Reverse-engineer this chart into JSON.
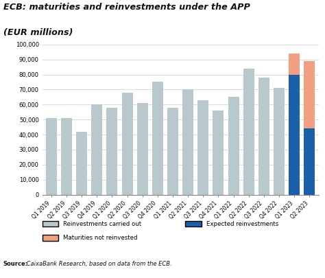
{
  "title_line1": "ECB: maturities and reinvestments under the APP",
  "title_line2": "(EUR millions)",
  "categories": [
    "Q1 2019",
    "Q2 2019",
    "Q3 2019",
    "Q4 2019",
    "Q1 2020",
    "Q2 2020",
    "Q3 2020",
    "Q4 2020",
    "Q1 2021",
    "Q2 2021",
    "Q3 2021",
    "Q4 2021",
    "Q1 2022",
    "Q2 2022",
    "Q3 2022",
    "Q4 2022",
    "Q1 2023",
    "Q2 2023"
  ],
  "reinvestments_carried_out": [
    51000,
    51000,
    42000,
    60000,
    58000,
    68000,
    61000,
    75000,
    58000,
    70000,
    63000,
    56000,
    65000,
    84000,
    78000,
    71000,
    0,
    0
  ],
  "expected_reinvestments": [
    0,
    0,
    0,
    0,
    0,
    0,
    0,
    0,
    0,
    0,
    0,
    0,
    0,
    0,
    0,
    0,
    80000,
    44000
  ],
  "maturities_not_reinvested": [
    0,
    0,
    0,
    0,
    0,
    0,
    0,
    0,
    0,
    0,
    0,
    0,
    0,
    0,
    0,
    0,
    14000,
    45000
  ],
  "color_reinvestments": "#b8c8cc",
  "color_expected": "#1a5fa8",
  "color_maturities": "#f0a080",
  "ylim": [
    0,
    100000
  ],
  "yticks": [
    0,
    10000,
    20000,
    30000,
    40000,
    50000,
    60000,
    70000,
    80000,
    90000,
    100000
  ],
  "ytick_labels": [
    "0",
    "10,000",
    "20,000",
    "30,000",
    "40,000",
    "50,000",
    "60,000",
    "70,000",
    "80,000",
    "90,000",
    "100,000"
  ],
  "source_bold": "Source:",
  "source_italic": " CaixaBank Research, based on data from the ECB.",
  "legend_entries": [
    "Reinvestments carried out",
    "Expected reinvestments",
    "Maturities not reinvested"
  ],
  "background_color": "#ffffff"
}
